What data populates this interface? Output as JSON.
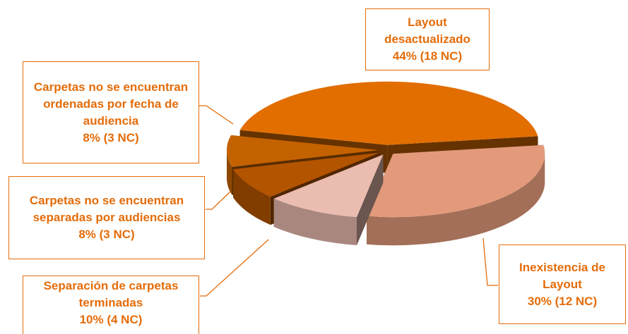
{
  "chart_data": {
    "type": "pie",
    "categories": [
      "Inexistencia de Layout",
      "Separación de carpetas terminadas",
      "Carpetas no se encuentran separadas por audiencias",
      "Carpetas no se encuentran ordenadas por fecha de audiencia",
      "Layout desactualizado"
    ],
    "values": [
      30,
      10,
      8,
      8,
      44
    ],
    "value_labels": [
      "30% (12 NC)",
      "10% (4 NC)",
      "8% (3 NC)",
      "8% (3 NC)",
      "44% (18 NC)"
    ],
    "colors": [
      "#e39a7a",
      "#ebbcb0",
      "#b35400",
      "#c46200",
      "#e26e00"
    ]
  }
}
